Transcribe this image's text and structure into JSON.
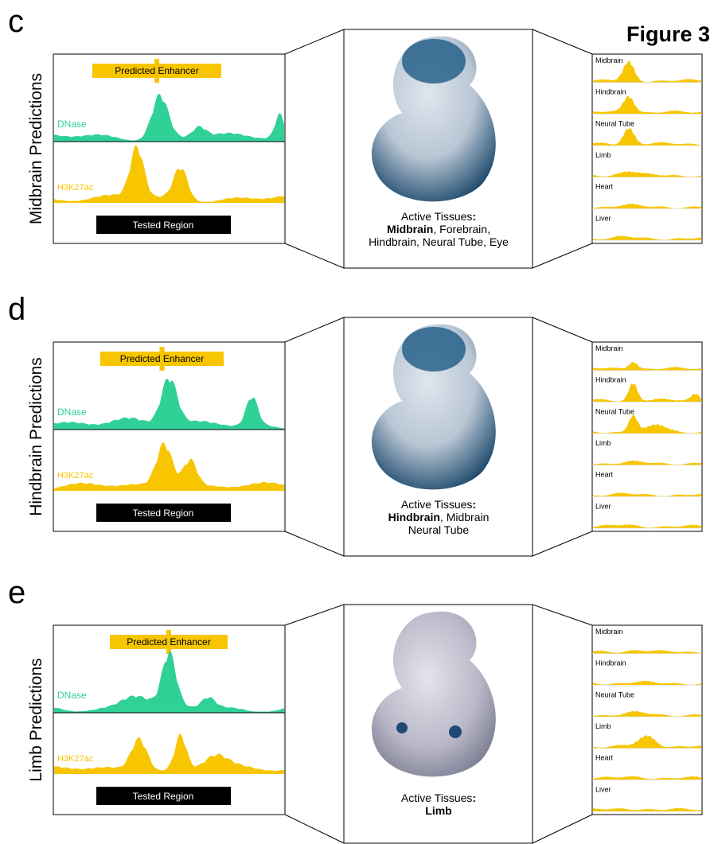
{
  "figure_label": "Figure 3",
  "panels": [
    {
      "letter": "c",
      "side_label": "Midbrain Predictions",
      "predicted_enhancer": "Predicted Enhancer",
      "tracks": [
        "DNase",
        "H3K27ac"
      ],
      "tested_region": "Tested Region",
      "active_tissues": [
        [
          {
            "text": "Active Tissues",
            "bold": false
          },
          {
            "text": ":",
            "bold": true
          }
        ],
        [
          {
            "text": "Midbrain",
            "bold": true
          },
          {
            "text": ", Forebrain,",
            "bold": false
          }
        ],
        [
          {
            "text": "Hindbrain, Neural Tube, Eye",
            "bold": false
          }
        ]
      ],
      "tissue_tracks": [
        "Midbrain",
        "Hindbrain",
        "Neural Tube",
        "Limb",
        "Heart",
        "Liver"
      ]
    },
    {
      "letter": "d",
      "side_label": "Hindbrain Predictions",
      "predicted_enhancer": "Predicted Enhancer",
      "tracks": [
        "DNase",
        "H3K27ac"
      ],
      "tested_region": "Tested Region",
      "active_tissues": [
        [
          {
            "text": "Active Tissues",
            "bold": false
          },
          {
            "text": ":",
            "bold": true
          }
        ],
        [
          {
            "text": "Hindbrain",
            "bold": true
          },
          {
            "text": ", Midbrain",
            "bold": false
          }
        ],
        [
          {
            "text": "Neural Tube",
            "bold": false
          }
        ]
      ],
      "tissue_tracks": [
        "Midbrain",
        "Hindbrain",
        "Neural Tube",
        "Limb",
        "Heart",
        "Liver"
      ]
    },
    {
      "letter": "e",
      "side_label": "Limb Predictions",
      "predicted_enhancer": "Predicted Enhancer",
      "tracks": [
        "DNase",
        "H3K27ac"
      ],
      "tested_region": "Tested Region",
      "active_tissues": [
        [
          {
            "text": "Active Tissues",
            "bold": false
          },
          {
            "text": ":",
            "bold": true
          }
        ],
        [
          {
            "text": "Limb",
            "bold": true
          }
        ]
      ],
      "tissue_tracks": [
        "Midbrain",
        "Hindbrain",
        "Neural Tube",
        "Limb",
        "Heart",
        "Liver"
      ]
    }
  ]
}
